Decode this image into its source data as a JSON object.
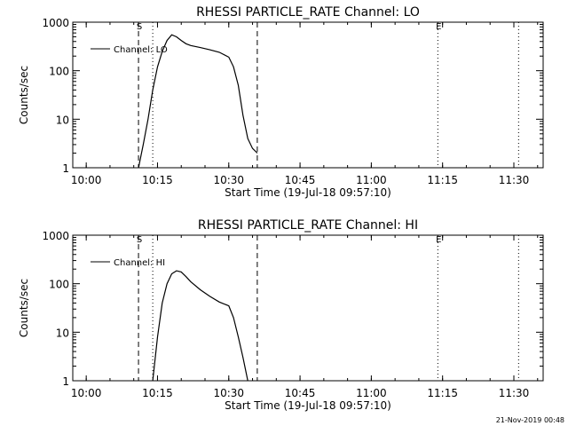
{
  "chart_data": [
    {
      "type": "line",
      "title": "RHESSI PARTICLE_RATE Channel: LO",
      "xlabel": "Start Time (19-Jul-18 09:57:10)",
      "ylabel": "Counts/sec",
      "yscale": "log",
      "ylim": [
        1,
        1000
      ],
      "xlim_minutes_after_start": [
        0,
        99
      ],
      "xtick_labels": [
        "10:00",
        "10:15",
        "10:30",
        "10:45",
        "11:00",
        "11:15",
        "11:30"
      ],
      "ytick_labels": [
        "1",
        "10",
        "100",
        "1000"
      ],
      "markers": [
        {
          "label": "S",
          "time": "10:11",
          "style": "dashed"
        },
        {
          "label": "",
          "time": "10:14",
          "style": "dotted"
        },
        {
          "label": "",
          "time": "10:36",
          "style": "dashed"
        },
        {
          "label": "E",
          "time": "11:14",
          "style": "dotted"
        },
        {
          "label": "",
          "time": "11:31",
          "style": "dotted"
        }
      ],
      "legend": {
        "position": "top-left",
        "entries": [
          "Channel: LO"
        ]
      },
      "series": [
        {
          "name": "Channel: LO",
          "x": [
            "10:11",
            "10:12",
            "10:13",
            "10:14",
            "10:15",
            "10:16",
            "10:17",
            "10:18",
            "10:19",
            "10:20",
            "10:21",
            "10:22",
            "10:24",
            "10:26",
            "10:28",
            "10:30",
            "10:31",
            "10:32",
            "10:33",
            "10:34",
            "10:35",
            "10:36"
          ],
          "y": [
            1,
            3,
            10,
            40,
            120,
            250,
            420,
            550,
            500,
            420,
            360,
            330,
            300,
            270,
            240,
            190,
            120,
            50,
            12,
            4,
            2.5,
            2
          ]
        }
      ]
    },
    {
      "type": "line",
      "title": "RHESSI PARTICLE_RATE Channel: HI",
      "xlabel": "Start Time (19-Jul-18 09:57:10)",
      "ylabel": "Counts/sec",
      "yscale": "log",
      "ylim": [
        1,
        1000
      ],
      "xlim_minutes_after_start": [
        0,
        99
      ],
      "xtick_labels": [
        "10:00",
        "10:15",
        "10:30",
        "10:45",
        "11:00",
        "11:15",
        "11:30"
      ],
      "ytick_labels": [
        "1",
        "10",
        "100",
        "1000"
      ],
      "markers": [
        {
          "label": "S",
          "time": "10:11",
          "style": "dashed"
        },
        {
          "label": "",
          "time": "10:14",
          "style": "dotted"
        },
        {
          "label": "",
          "time": "10:36",
          "style": "dashed"
        },
        {
          "label": "E",
          "time": "11:14",
          "style": "dotted"
        },
        {
          "label": "",
          "time": "11:31",
          "style": "dotted"
        }
      ],
      "legend": {
        "position": "top-left",
        "entries": [
          "Channel: HI"
        ]
      },
      "series": [
        {
          "name": "Channel: HI",
          "x": [
            "10:14",
            "10:15",
            "10:16",
            "10:17",
            "10:18",
            "10:19",
            "10:20",
            "10:21",
            "10:22",
            "10:24",
            "10:26",
            "10:28",
            "10:30",
            "10:31",
            "10:32",
            "10:33",
            "10:34"
          ],
          "y": [
            1,
            8,
            40,
            100,
            160,
            185,
            175,
            140,
            110,
            75,
            55,
            42,
            35,
            20,
            8,
            3,
            1
          ]
        }
      ]
    }
  ],
  "footer": {
    "timestamp": "21-Nov-2019 00:48"
  }
}
